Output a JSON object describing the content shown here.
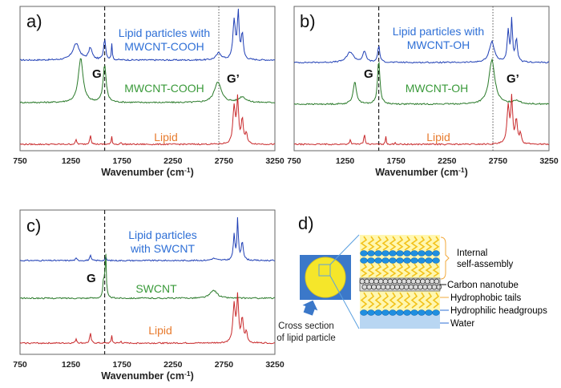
{
  "panels": [
    {
      "id": "a",
      "label": "a)",
      "xlabel": "Wavenumber (cm",
      "xlabel_sup": "-1",
      "xlabel_close": ")",
      "dashed_line_x": 1580,
      "dotted_line_x": 2700,
      "peak_labels": [
        "G",
        "G’"
      ],
      "series": [
        {
          "name": "Lipid particles with MWCNT-COOH",
          "lines": [
            "Lipid particles with",
            "MWCNT-COOH"
          ],
          "color": "#1f3fb5",
          "label_color": "#2e6fd6"
        },
        {
          "name": "MWCNT-COOH",
          "lines": [
            "MWCNT-COOH"
          ],
          "color": "#2a7a2a",
          "label_color": "#3a9a3a"
        },
        {
          "name": "Lipid",
          "lines": [
            "Lipid"
          ],
          "color": "#c8282a",
          "label_color": "#e87b2e"
        }
      ]
    },
    {
      "id": "b",
      "label": "b)",
      "xlabel": "Wavenumber (cm",
      "xlabel_sup": "-1",
      "xlabel_close": ")",
      "dashed_line_x": 1580,
      "dotted_line_x": 2700,
      "peak_labels": [
        "G",
        "G’"
      ],
      "series": [
        {
          "name": "Lipid particles with MWCNT-OH",
          "lines": [
            "Lipid particles with",
            "MWCNT-OH"
          ],
          "color": "#1f3fb5",
          "label_color": "#2e6fd6"
        },
        {
          "name": "MWCNT-OH",
          "lines": [
            "MWCNT-OH"
          ],
          "color": "#2a7a2a",
          "label_color": "#3a9a3a"
        },
        {
          "name": "Lipid",
          "lines": [
            "Lipid"
          ],
          "color": "#c8282a",
          "label_color": "#e87b2e"
        }
      ]
    },
    {
      "id": "c",
      "label": "c)",
      "xlabel": "Wavenumber (cm",
      "xlabel_sup": "-1",
      "xlabel_close": ")",
      "dashed_line_x": 1580,
      "dotted_line_x": null,
      "peak_labels": [
        "G"
      ],
      "series": [
        {
          "name": "Lipid particles with SWCNT",
          "lines": [
            "Lipid particles",
            "with SWCNT"
          ],
          "color": "#1f3fb5",
          "label_color": "#2e6fd6"
        },
        {
          "name": "SWCNT",
          "lines": [
            "SWCNT"
          ],
          "color": "#2a7a2a",
          "label_color": "#3a9a3a"
        },
        {
          "name": "Lipid",
          "lines": [
            "Lipid"
          ],
          "color": "#c8282a",
          "label_color": "#e87b2e"
        }
      ]
    }
  ],
  "x_ticks": [
    "750",
    "1250",
    "1750",
    "2250",
    "2750",
    "3250"
  ],
  "chart_data": [
    {
      "type": "line",
      "panel": "a",
      "xlabel": "Wavenumber (cm-1)",
      "xlim": [
        750,
        3250
      ],
      "series": [
        {
          "name": "Lipid particles with MWCNT-COOH",
          "peaks_cm1": [
            1300,
            1440,
            1580,
            1650,
            2700,
            2850,
            2890,
            2930
          ]
        },
        {
          "name": "MWCNT-COOH",
          "peaks_cm1": [
            1345,
            1580,
            2690,
            2930
          ]
        },
        {
          "name": "Lipid",
          "peaks_cm1": [
            1300,
            1440,
            1650,
            2850,
            2885,
            2930
          ]
        }
      ]
    },
    {
      "type": "line",
      "panel": "b",
      "xlabel": "Wavenumber (cm-1)",
      "xlim": [
        750,
        3250
      ],
      "series": [
        {
          "name": "Lipid particles with MWCNT-OH",
          "peaks_cm1": [
            1300,
            1440,
            1580,
            1650,
            2690,
            2850,
            2885,
            2930
          ]
        },
        {
          "name": "MWCNT-OH",
          "peaks_cm1": [
            1345,
            1580,
            2690,
            2930
          ]
        },
        {
          "name": "Lipid",
          "peaks_cm1": [
            1300,
            1440,
            1650,
            2850,
            2885,
            2930
          ]
        }
      ]
    },
    {
      "type": "line",
      "panel": "c",
      "xlabel": "Wavenumber (cm-1)",
      "xlim": [
        750,
        3250
      ],
      "series": [
        {
          "name": "Lipid particles with SWCNT",
          "peaks_cm1": [
            1300,
            1440,
            1590,
            2850,
            2885,
            2930
          ]
        },
        {
          "name": "SWCNT",
          "peaks_cm1": [
            1570,
            1590,
            2650
          ]
        },
        {
          "name": "Lipid",
          "peaks_cm1": [
            1300,
            1440,
            1650,
            2850,
            2885,
            2930
          ]
        }
      ]
    }
  ],
  "diagram": {
    "label": "d)",
    "layers": [
      {
        "text": "Internal",
        "color": "#f2a93b"
      },
      {
        "text": "self-assembly",
        "color": "#f2a93b"
      },
      {
        "text": "Carbon nanotube",
        "color": "#111111"
      },
      {
        "text": "Hydrophobic tails",
        "color": "#f2a93b"
      },
      {
        "text": "Hydrophilic headgroups",
        "color": "#2e6fd6"
      },
      {
        "text": "Water",
        "color": "#2e6fd6"
      }
    ],
    "cross_section_lines": [
      "Cross section",
      "of lipid particle"
    ]
  }
}
